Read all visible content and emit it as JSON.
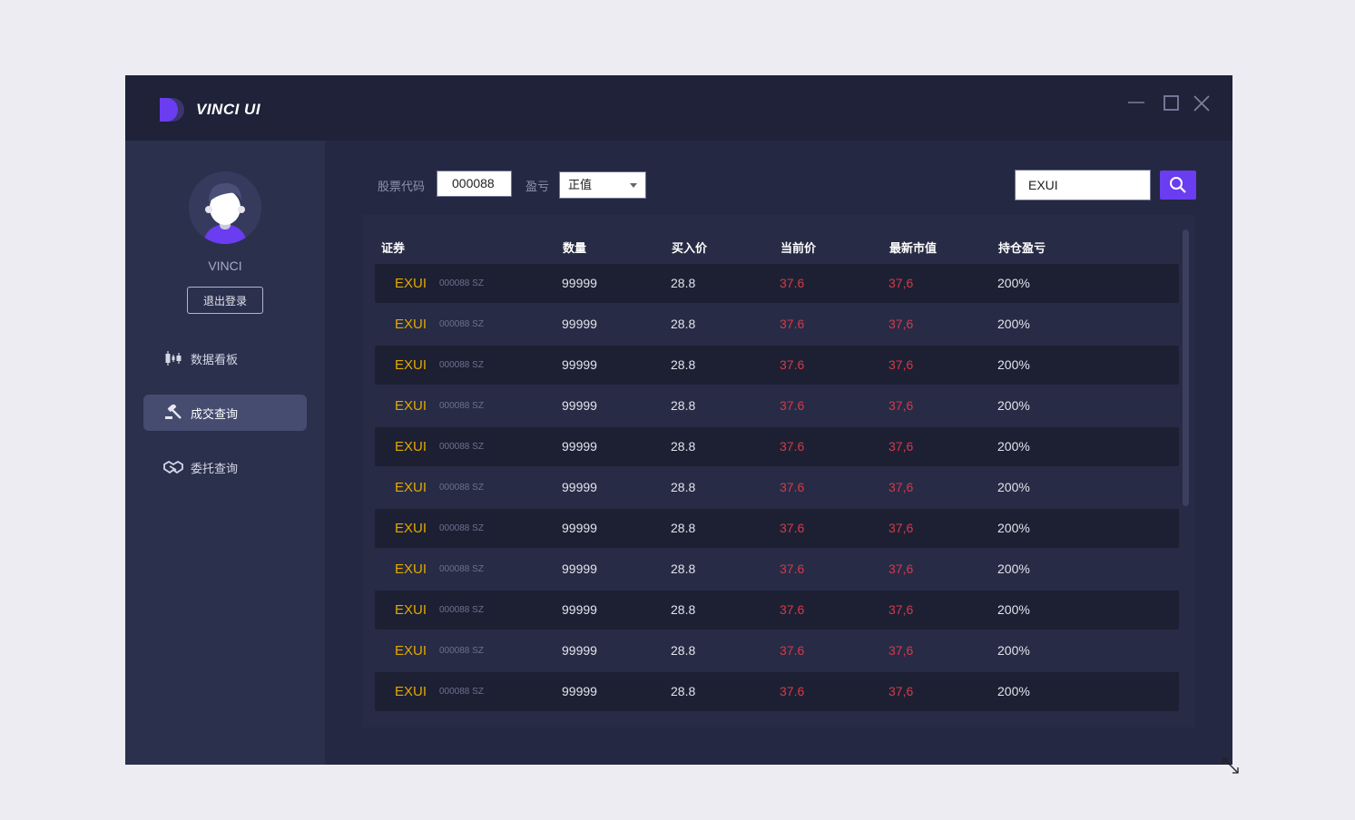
{
  "app": {
    "title": "VINCI UI",
    "logo_icon": "vinci-logo-icon"
  },
  "window_controls": {
    "icons": [
      "minimize-icon",
      "maximize-icon",
      "close-icon"
    ]
  },
  "user": {
    "name": "VINCI",
    "logout_label": "退出登录",
    "avatar_icon": "user-avatar-icon"
  },
  "sidebar": {
    "items": [
      {
        "label": "数据看板",
        "icon": "candlestick-icon",
        "active": false
      },
      {
        "label": "成交查询",
        "icon": "gavel-icon",
        "active": true
      },
      {
        "label": "委托查询",
        "icon": "handshake-icon",
        "active": false
      }
    ]
  },
  "filters": {
    "code_label": "股票代码",
    "code_value": "000088",
    "pnl_label": "盈亏",
    "pnl_value": "正值",
    "search_value": "EXUI",
    "search_icon": "search-icon"
  },
  "colors": {
    "accent": "#6a3df0",
    "symbol": "#e2a900",
    "loss": "#d33a4a"
  },
  "table": {
    "headers": [
      "证券",
      "数量",
      "买入价",
      "当前价",
      "最新市值",
      "持仓盈亏"
    ],
    "rows": [
      {
        "symbol": "EXUI",
        "code": "000088 SZ",
        "qty": "99999",
        "buy": "28.8",
        "current": "37.6",
        "market": "37,6",
        "pnl": "200%"
      },
      {
        "symbol": "EXUI",
        "code": "000088 SZ",
        "qty": "99999",
        "buy": "28.8",
        "current": "37.6",
        "market": "37,6",
        "pnl": "200%"
      },
      {
        "symbol": "EXUI",
        "code": "000088 SZ",
        "qty": "99999",
        "buy": "28.8",
        "current": "37.6",
        "market": "37,6",
        "pnl": "200%"
      },
      {
        "symbol": "EXUI",
        "code": "000088 SZ",
        "qty": "99999",
        "buy": "28.8",
        "current": "37.6",
        "market": "37,6",
        "pnl": "200%"
      },
      {
        "symbol": "EXUI",
        "code": "000088 SZ",
        "qty": "99999",
        "buy": "28.8",
        "current": "37.6",
        "market": "37,6",
        "pnl": "200%"
      },
      {
        "symbol": "EXUI",
        "code": "000088 SZ",
        "qty": "99999",
        "buy": "28.8",
        "current": "37.6",
        "market": "37,6",
        "pnl": "200%"
      },
      {
        "symbol": "EXUI",
        "code": "000088 SZ",
        "qty": "99999",
        "buy": "28.8",
        "current": "37.6",
        "market": "37,6",
        "pnl": "200%"
      },
      {
        "symbol": "EXUI",
        "code": "000088 SZ",
        "qty": "99999",
        "buy": "28.8",
        "current": "37.6",
        "market": "37,6",
        "pnl": "200%"
      },
      {
        "symbol": "EXUI",
        "code": "000088 SZ",
        "qty": "99999",
        "buy": "28.8",
        "current": "37.6",
        "market": "37,6",
        "pnl": "200%"
      },
      {
        "symbol": "EXUI",
        "code": "000088 SZ",
        "qty": "99999",
        "buy": "28.8",
        "current": "37.6",
        "market": "37,6",
        "pnl": "200%"
      },
      {
        "symbol": "EXUI",
        "code": "000088 SZ",
        "qty": "99999",
        "buy": "28.8",
        "current": "37.6",
        "market": "37,6",
        "pnl": "200%"
      }
    ]
  }
}
